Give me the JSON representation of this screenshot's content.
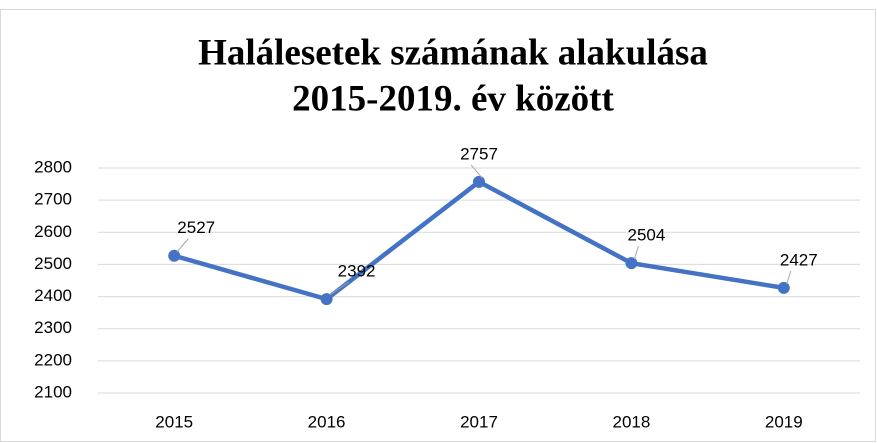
{
  "chart_data": {
    "type": "line",
    "title": [
      "Halálesetek számának alakulása",
      "2015-2019. év között"
    ],
    "categories": [
      "2015",
      "2016",
      "2017",
      "2018",
      "2019"
    ],
    "values": [
      2527,
      2392,
      2757,
      2504,
      2427
    ],
    "color": "#4472c4",
    "ylim": [
      2100,
      2800
    ],
    "yticks": [
      2100,
      2200,
      2300,
      2400,
      2500,
      2600,
      2700,
      2800
    ],
    "grid": true
  }
}
